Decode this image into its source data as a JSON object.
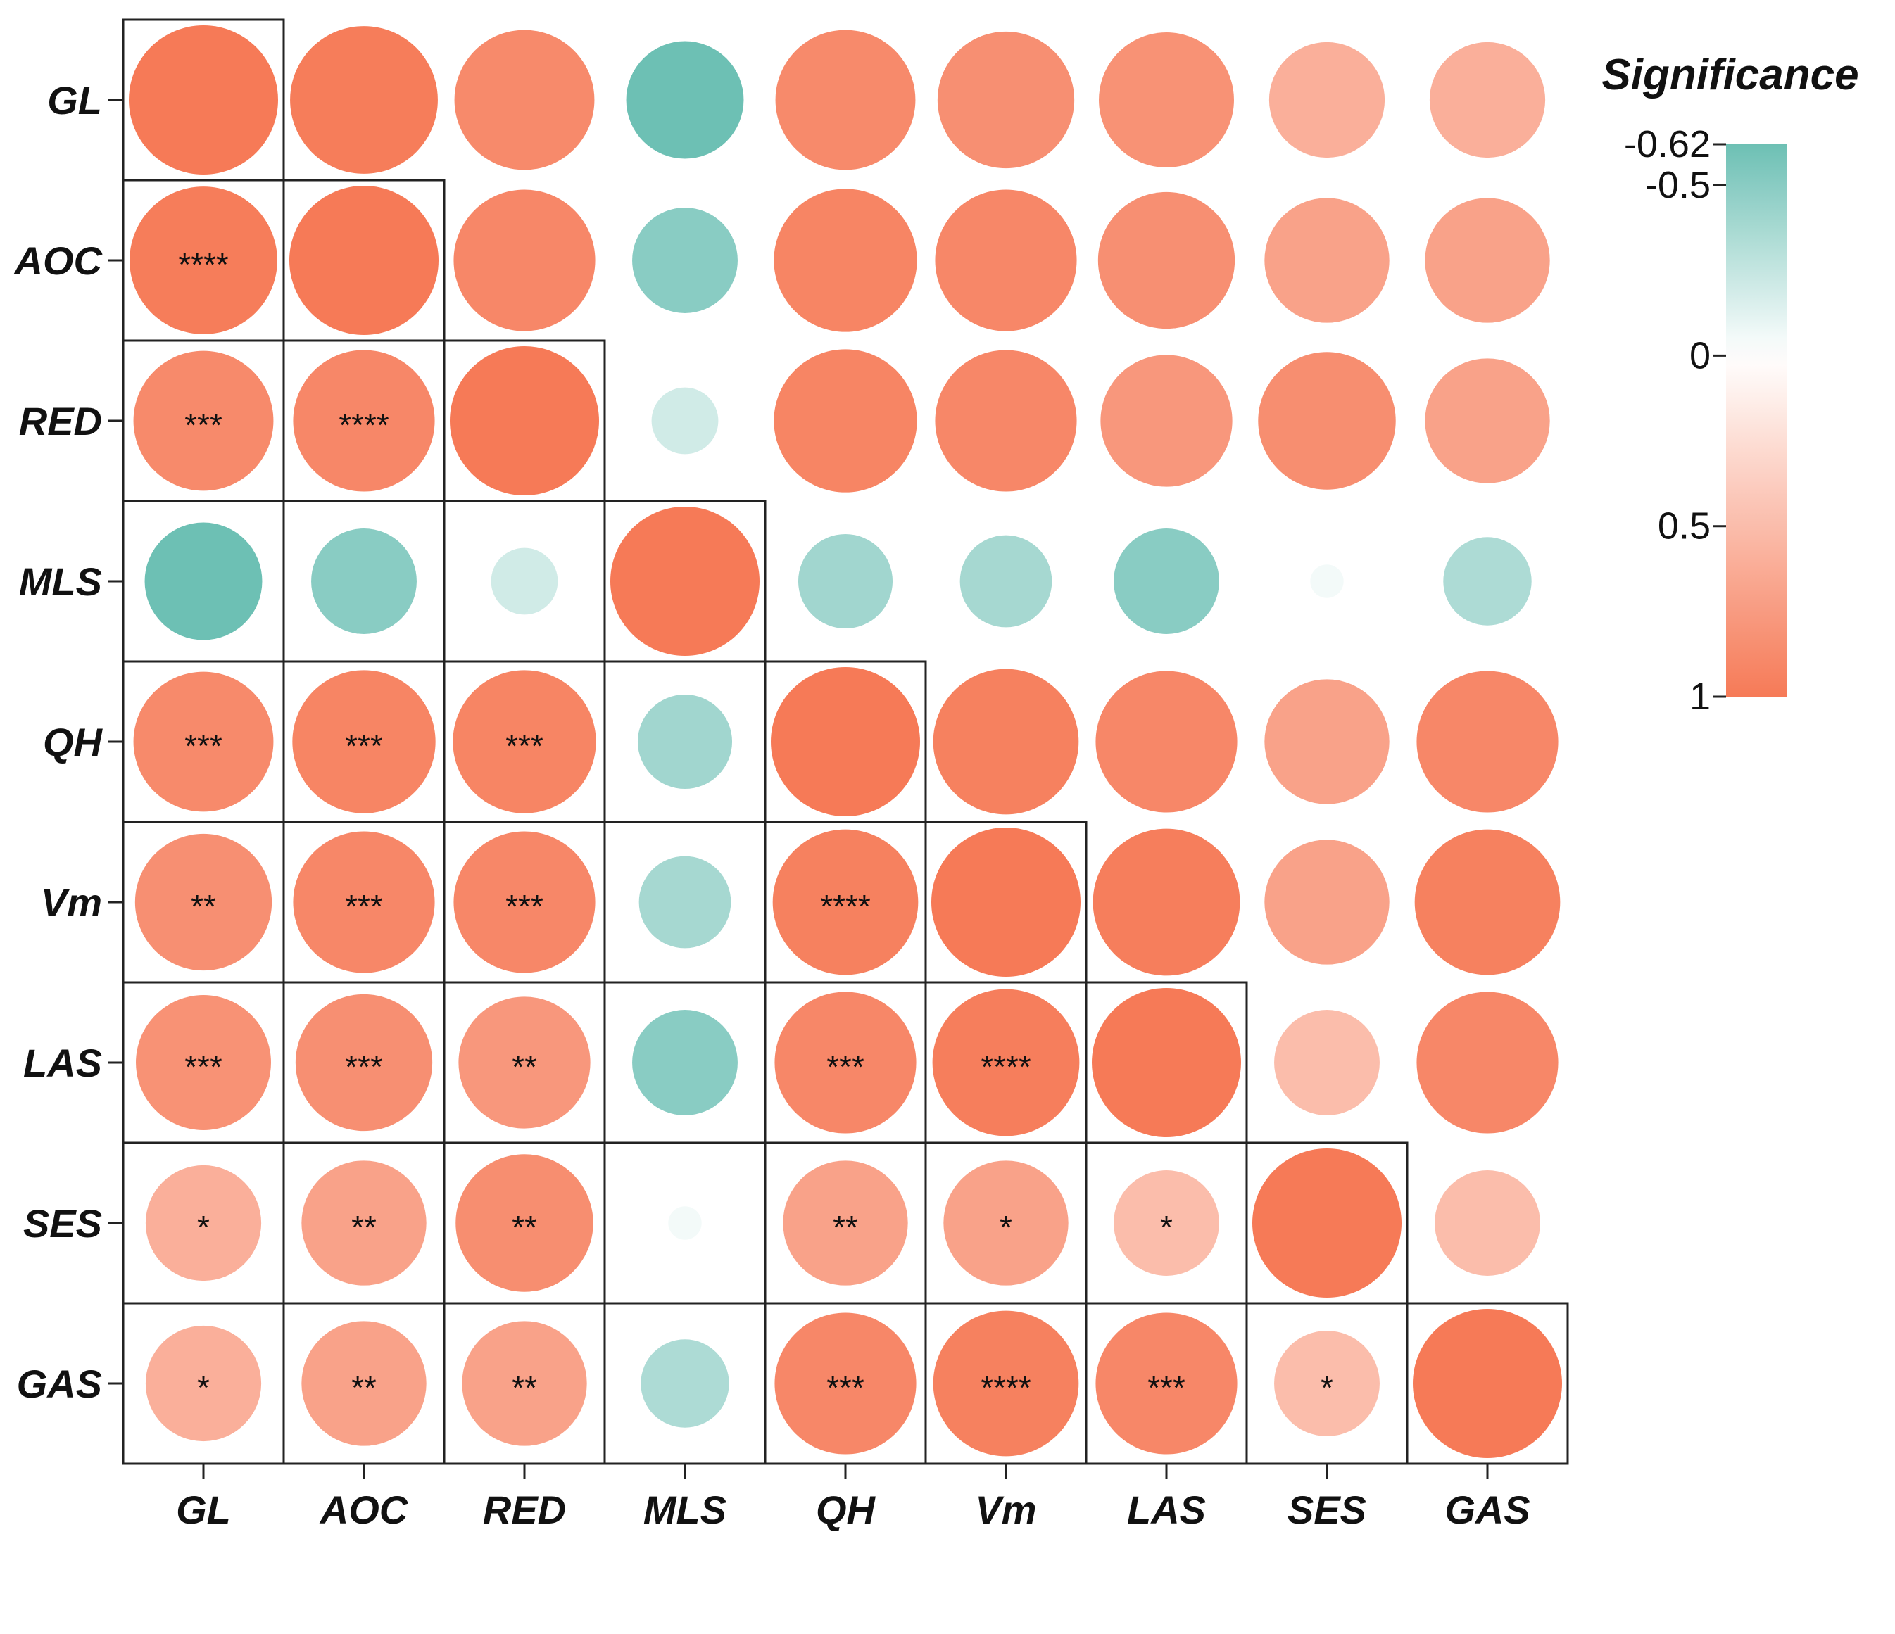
{
  "chart_data": {
    "type": "correlation-matrix",
    "variables": [
      "GL",
      "AOC",
      "RED",
      "MLS",
      "QH",
      "Vm",
      "LAS",
      "SES",
      "GAS"
    ],
    "values": [
      [
        1.0,
        0.98,
        0.88,
        -0.62,
        0.88,
        0.84,
        0.82,
        0.6,
        0.6
      ],
      [
        0.98,
        1.0,
        0.9,
        -0.5,
        0.92,
        0.9,
        0.84,
        0.7,
        0.7
      ],
      [
        0.88,
        0.9,
        1.0,
        -0.2,
        0.92,
        0.9,
        0.78,
        0.85,
        0.7
      ],
      [
        -0.62,
        -0.5,
        -0.2,
        1.0,
        -0.4,
        -0.38,
        -0.5,
        -0.05,
        -0.35
      ],
      [
        0.88,
        0.92,
        0.92,
        -0.4,
        1.0,
        0.95,
        0.9,
        0.7,
        0.9
      ],
      [
        0.84,
        0.9,
        0.9,
        -0.38,
        0.95,
        1.0,
        0.97,
        0.7,
        0.95
      ],
      [
        0.82,
        0.84,
        0.78,
        -0.5,
        0.9,
        0.97,
        1.0,
        0.5,
        0.9
      ],
      [
        0.6,
        0.7,
        0.85,
        -0.05,
        0.7,
        0.7,
        0.5,
        1.0,
        0.5
      ],
      [
        0.6,
        0.7,
        0.7,
        -0.35,
        0.9,
        0.95,
        0.9,
        0.5,
        1.0
      ]
    ],
    "significance": [
      [
        "",
        "",
        "",
        "",
        "",
        "",
        "",
        "",
        ""
      ],
      [
        "****",
        "",
        "",
        "",
        "",
        "",
        "",
        "",
        ""
      ],
      [
        "***",
        "****",
        "",
        "",
        "",
        "",
        "",
        "",
        ""
      ],
      [
        "",
        "",
        "",
        "",
        "",
        "",
        "",
        "",
        ""
      ],
      [
        "***",
        "***",
        "***",
        "",
        "",
        "",
        "",
        "",
        ""
      ],
      [
        "**",
        "***",
        "***",
        "",
        "****",
        "",
        "",
        "",
        ""
      ],
      [
        "***",
        "***",
        "**",
        "",
        "***",
        "****",
        "",
        "",
        ""
      ],
      [
        "*",
        "**",
        "**",
        "",
        "**",
        "*",
        "*",
        "",
        ""
      ],
      [
        "*",
        "**",
        "**",
        "",
        "***",
        "****",
        "***",
        "*",
        ""
      ]
    ],
    "legend": {
      "title": "Significance",
      "range": [
        -0.62,
        1
      ],
      "ticks": [
        {
          "value": -0.62,
          "label": "-0.62"
        },
        {
          "value": -0.5,
          "label": "-0.5"
        },
        {
          "value": 0,
          "label": "0"
        },
        {
          "value": 0.5,
          "label": "0.5"
        },
        {
          "value": 1,
          "label": "1"
        }
      ]
    },
    "colors": {
      "positive": "#f67a57",
      "negative": "#6dc0b4",
      "neutral": "#ffffff",
      "frame": "#222222",
      "axis": "#222222"
    }
  }
}
